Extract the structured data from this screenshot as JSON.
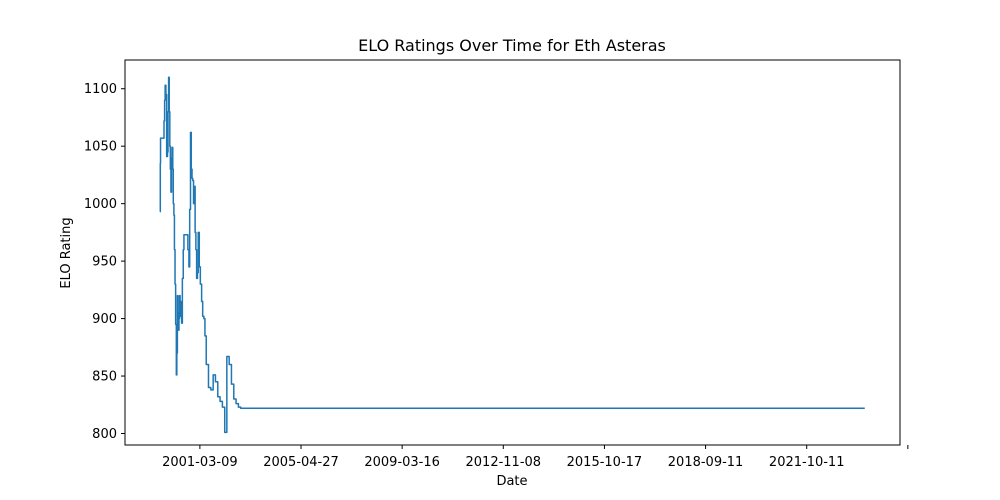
{
  "chart_data": {
    "type": "line",
    "title": "ELO Ratings Over Time for Eth Asteras",
    "xlabel": "Date",
    "ylabel": "ELO Rating",
    "x_tick_labels": [
      "2001-03-09",
      "2005-04-27",
      "2009-03-16",
      "2012-11-08",
      "2015-10-17",
      "2018-09-11",
      "2021-10-11",
      ""
    ],
    "y_ticks": [
      800,
      850,
      900,
      950,
      1000,
      1050,
      1100
    ],
    "ylim": [
      790,
      1125
    ],
    "grid": false,
    "colors": {
      "line": "#1f77b4"
    },
    "series": [
      {
        "x": [
          "1999-10-01",
          "1999-10-02",
          "1999-10-05",
          "1999-10-10",
          "1999-11-12",
          "1999-11-20",
          "1999-11-28",
          "1999-12-05",
          "1999-12-15",
          "1999-12-25",
          "2000-01-05",
          "2000-01-12",
          "2000-01-20",
          "2000-01-28",
          "2000-02-05",
          "2000-02-12",
          "2000-02-20",
          "2000-02-28",
          "2000-03-05",
          "2000-03-15",
          "2000-03-22",
          "2000-03-30",
          "2000-04-06",
          "2000-04-14",
          "2000-04-22",
          "2000-05-01",
          "2000-05-08",
          "2000-05-15",
          "2000-05-22",
          "2000-05-29",
          "2000-06-05",
          "2000-06-12",
          "2000-06-20",
          "2000-07-01",
          "2000-07-10",
          "2000-07-20",
          "2000-08-01",
          "2000-08-10",
          "2000-08-20",
          "2000-09-01",
          "2000-09-10",
          "2000-09-20",
          "2000-10-01",
          "2000-10-15",
          "2000-10-25",
          "2000-11-05",
          "2000-11-15",
          "2000-11-25",
          "2000-12-05",
          "2000-12-15",
          "2000-12-25",
          "2001-01-05",
          "2001-01-15",
          "2001-01-25",
          "2001-02-05",
          "2001-02-15",
          "2001-03-01",
          "2001-03-15",
          "2001-04-01",
          "2001-04-15",
          "2001-05-01",
          "2001-05-15",
          "2001-06-01",
          "2001-07-01",
          "2001-08-01",
          "2001-09-01",
          "2001-10-01",
          "2001-11-01",
          "2001-12-01",
          "2002-01-01",
          "2002-02-01",
          "2002-03-01",
          "2002-04-01",
          "2002-05-01",
          "2002-06-01",
          "2002-07-01",
          "2002-08-01",
          "2002-09-01",
          "2002-10-01",
          "2002-11-01",
          "2002-12-01",
          "2003-01-01",
          "2003-02-01",
          "2003-03-01",
          "2003-04-01",
          "2003-05-01",
          "2003-06-01",
          "2003-07-01",
          "2003-08-01",
          "2003-09-01",
          "2003-10-01",
          "2003-11-01",
          "2003-12-01",
          "2004-01-01",
          "2004-02-01",
          "2004-03-01",
          "2004-04-01",
          "2004-05-01",
          "2025-04-15"
        ],
        "y": [
          993,
          1035,
          1057,
          1057,
          1057,
          1072,
          1090,
          1103,
          1095,
          1041,
          1045,
          1080,
          1110,
          1080,
          1050,
          1030,
          1010,
          1040,
          1049,
          1030,
          1000,
          990,
          960,
          930,
          895,
          851,
          870,
          920,
          905,
          890,
          900,
          920,
          915,
          902,
          896,
          935,
          960,
          973,
          973,
          973,
          973,
          973,
          960,
          945,
          995,
          1062,
          1030,
          1022,
          1020,
          1000,
          1015,
          975,
          960,
          935,
          940,
          975,
          945,
          930,
          915,
          902,
          900,
          885,
          860,
          840,
          838,
          851,
          845,
          832,
          828,
          823,
          801,
          867,
          860,
          843,
          830,
          826,
          823,
          822,
          822,
          822,
          822,
          822,
          822,
          822,
          822,
          822,
          822,
          822,
          822,
          822,
          822,
          822,
          822,
          822,
          822,
          822,
          822,
          822,
          822
        ]
      }
    ]
  }
}
